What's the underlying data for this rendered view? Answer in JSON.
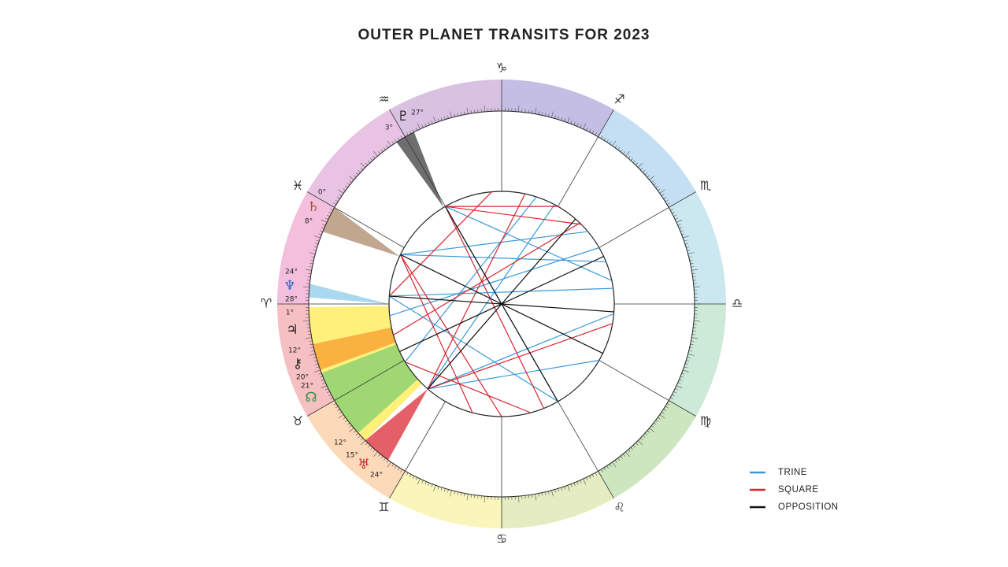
{
  "title": "OUTER PLANET TRANSITS FOR 2023",
  "signs": [
    "♈",
    "♉",
    "♊",
    "♋",
    "♌",
    "♍",
    "♎",
    "♏",
    "♐",
    "♑",
    "♒",
    "♓"
  ],
  "planets": [
    {
      "glyph": "♇",
      "labels": [
        "27°",
        "3°"
      ]
    },
    {
      "glyph": "♄",
      "labels": [
        "0°",
        "8°"
      ]
    },
    {
      "glyph": "♆",
      "labels": [
        "24°",
        "28°"
      ]
    },
    {
      "glyph": "♃",
      "labels": [
        "1°"
      ]
    },
    {
      "glyph": "⚷",
      "labels": [
        "12°",
        "20°"
      ]
    },
    {
      "glyph": "☊",
      "labels": [
        "21°"
      ]
    },
    {
      "glyph": "♅",
      "labels": [
        "12°",
        "15°",
        "24°"
      ]
    }
  ],
  "legend": [
    {
      "label": "TRINE",
      "color": "#3a9ad9"
    },
    {
      "label": "SQUARE",
      "color": "#d9252f"
    },
    {
      "label": "OPPOSITION",
      "color": "#111111"
    }
  ]
}
